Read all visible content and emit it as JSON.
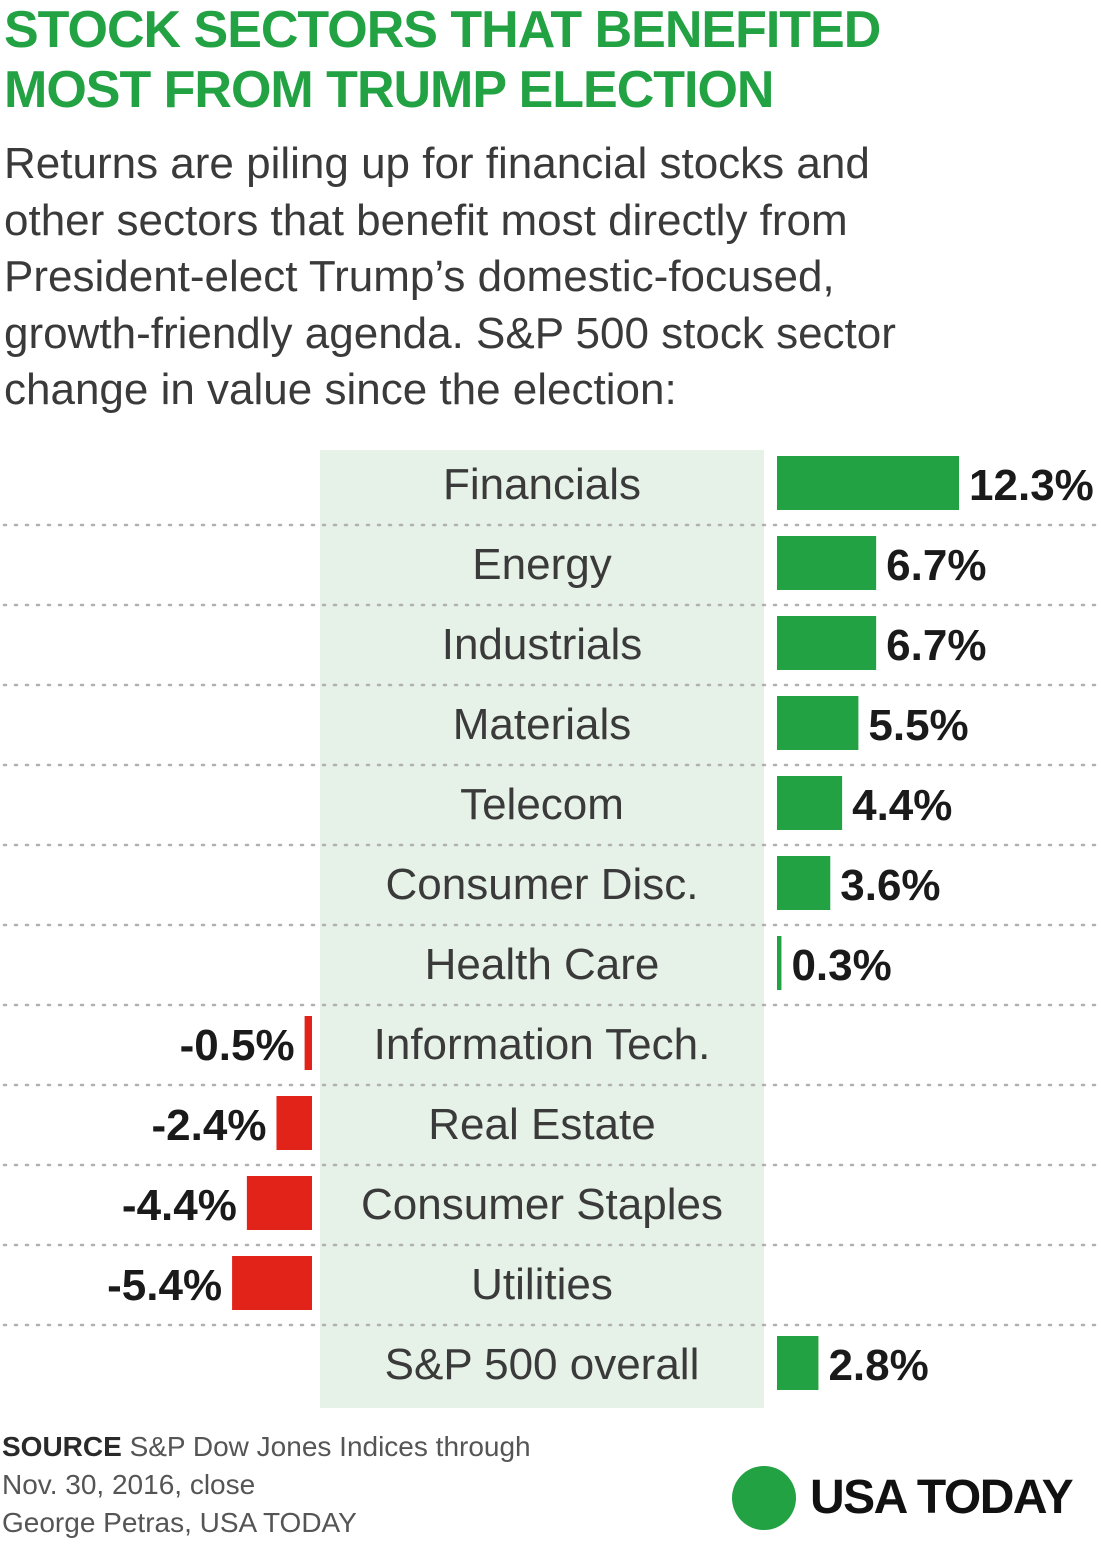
{
  "title_lines": [
    "STOCK SECTORS THAT BENEFITED",
    "MOST FROM TRUMP ELECTION"
  ],
  "subtitle_lines": [
    "Returns are piling up for financial stocks and",
    "other sectors that benefit most directly from",
    "President-elect Trump’s domestic-focused,",
    "growth-friendly agenda. S&P 500 stock sector",
    "change in value since the election:"
  ],
  "footer": {
    "source_label": "SOURCE",
    "source_text": " S&P Dow Jones Indices through",
    "source_line2": "Nov. 30, 2016, close",
    "credit": "George Petras, USA TODAY"
  },
  "logo": {
    "text": "USA TODAY"
  },
  "colors": {
    "positive": "#22a243",
    "negative": "#e2231a",
    "label_band": "#e6f1e7",
    "title": "#22a243",
    "text": "#3a3a3a",
    "dots": "#b0b0b0"
  },
  "chart_data": {
    "type": "bar",
    "orientation": "horizontal",
    "categories": [
      "Financials",
      "Energy",
      "Industrials",
      "Materials",
      "Telecom",
      "Consumer Disc.",
      "Health Care",
      "Information Tech.",
      "Real Estate",
      "Consumer Staples",
      "Utilities",
      "S&P 500 overall"
    ],
    "values": [
      12.3,
      6.7,
      6.7,
      5.5,
      4.4,
      3.6,
      0.3,
      -0.5,
      -2.4,
      -4.4,
      -5.4,
      2.8
    ],
    "value_labels": [
      "12.3%",
      "6.7%",
      "6.7%",
      "5.5%",
      "4.4%",
      "3.6%",
      "0.3%",
      "-0.5%",
      "-2.4%",
      "-4.4%",
      "-5.4%",
      "2.8%"
    ],
    "unit": "%",
    "grid": false
  }
}
